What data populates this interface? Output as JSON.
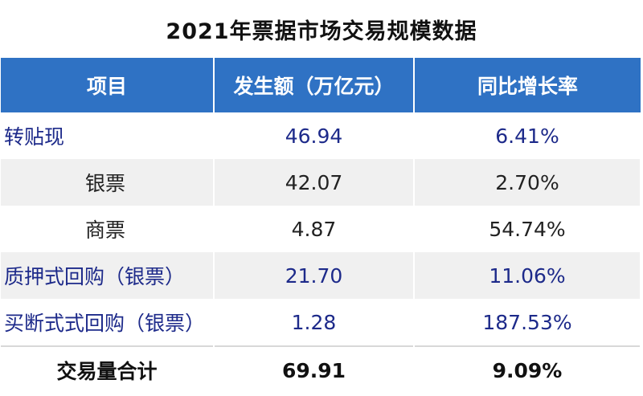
{
  "title": "2021年票据市场交易规模数据",
  "columns": [
    "项目",
    "发生额（万亿元）",
    "同比增长率"
  ],
  "rows": [
    {
      "label": "转贴现",
      "amount": "46.94",
      "growth": "6.41%"
    },
    {
      "label": "银票",
      "amount": "42.07",
      "growth": "2.70%"
    },
    {
      "label": "商票",
      "amount": "4.87",
      "growth": "54.74%"
    },
    {
      "label": "质押式回购（银票）",
      "amount": "21.70",
      "growth": "11.06%"
    },
    {
      "label": "买断式式回购（银票）",
      "amount": "1.28",
      "growth": "187.53%"
    }
  ],
  "total": {
    "label": "交易量合计",
    "amount": "69.91",
    "growth": "9.09%"
  },
  "colors": {
    "header_bg": "#2f72c4",
    "body_text": "#1d2a8a"
  }
}
